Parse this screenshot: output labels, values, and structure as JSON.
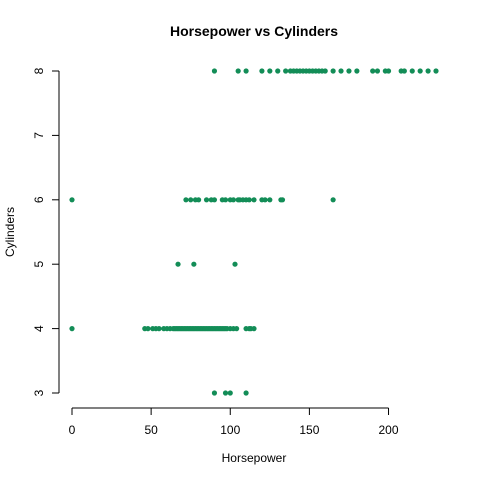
{
  "chart_data": {
    "type": "scatter",
    "title": "Horsepower vs Cylinders",
    "xlabel": "Horsepower",
    "ylabel": "Cylinders",
    "xlim": [
      0,
      230
    ],
    "ylim": [
      3,
      8
    ],
    "x_ticks": [
      0,
      50,
      100,
      150,
      200
    ],
    "y_ticks": [
      3,
      4,
      5,
      6,
      7,
      8
    ],
    "grid": false,
    "legend": "none",
    "point_color": "#138D57",
    "series": [
      {
        "points": [
          [
            90,
            8
          ],
          [
            105,
            8
          ],
          [
            110,
            8
          ],
          [
            120,
            8
          ],
          [
            125,
            8
          ],
          [
            130,
            8
          ],
          [
            135,
            8
          ],
          [
            138,
            8
          ],
          [
            140,
            8
          ],
          [
            142,
            8
          ],
          [
            144,
            8
          ],
          [
            146,
            8
          ],
          [
            148,
            8
          ],
          [
            150,
            8
          ],
          [
            152,
            8
          ],
          [
            154,
            8
          ],
          [
            156,
            8
          ],
          [
            158,
            8
          ],
          [
            160,
            8
          ],
          [
            165,
            8
          ],
          [
            170,
            8
          ],
          [
            175,
            8
          ],
          [
            180,
            8
          ],
          [
            190,
            8
          ],
          [
            193,
            8
          ],
          [
            198,
            8
          ],
          [
            200,
            8
          ],
          [
            208,
            8
          ],
          [
            210,
            8
          ],
          [
            215,
            8
          ],
          [
            220,
            8
          ],
          [
            225,
            8
          ],
          [
            230,
            8
          ],
          [
            0,
            6
          ],
          [
            72,
            6
          ],
          [
            75,
            6
          ],
          [
            78,
            6
          ],
          [
            80,
            6
          ],
          [
            85,
            6
          ],
          [
            88,
            6
          ],
          [
            90,
            6
          ],
          [
            95,
            6
          ],
          [
            97,
            6
          ],
          [
            100,
            6
          ],
          [
            102,
            6
          ],
          [
            105,
            6
          ],
          [
            106,
            6
          ],
          [
            108,
            6
          ],
          [
            110,
            6
          ],
          [
            112,
            6
          ],
          [
            115,
            6
          ],
          [
            120,
            6
          ],
          [
            122,
            6
          ],
          [
            125,
            6
          ],
          [
            132,
            6
          ],
          [
            133,
            6
          ],
          [
            165,
            6
          ],
          [
            67,
            5
          ],
          [
            77,
            5
          ],
          [
            103,
            5
          ],
          [
            0,
            4
          ],
          [
            46,
            4
          ],
          [
            48,
            4
          ],
          [
            51,
            4
          ],
          [
            53,
            4
          ],
          [
            55,
            4
          ],
          [
            58,
            4
          ],
          [
            60,
            4
          ],
          [
            62,
            4
          ],
          [
            64,
            4
          ],
          [
            65,
            4
          ],
          [
            66,
            4
          ],
          [
            67,
            4
          ],
          [
            68,
            4
          ],
          [
            69,
            4
          ],
          [
            70,
            4
          ],
          [
            71,
            4
          ],
          [
            72,
            4
          ],
          [
            73,
            4
          ],
          [
            74,
            4
          ],
          [
            75,
            4
          ],
          [
            76,
            4
          ],
          [
            77,
            4
          ],
          [
            78,
            4
          ],
          [
            79,
            4
          ],
          [
            80,
            4
          ],
          [
            81,
            4
          ],
          [
            82,
            4
          ],
          [
            83,
            4
          ],
          [
            84,
            4
          ],
          [
            85,
            4
          ],
          [
            86,
            4
          ],
          [
            87,
            4
          ],
          [
            88,
            4
          ],
          [
            89,
            4
          ],
          [
            90,
            4
          ],
          [
            91,
            4
          ],
          [
            92,
            4
          ],
          [
            93,
            4
          ],
          [
            94,
            4
          ],
          [
            95,
            4
          ],
          [
            96,
            4
          ],
          [
            97,
            4
          ],
          [
            98,
            4
          ],
          [
            100,
            4
          ],
          [
            102,
            4
          ],
          [
            104,
            4
          ],
          [
            110,
            4
          ],
          [
            112,
            4
          ],
          [
            113,
            4
          ],
          [
            115,
            4
          ],
          [
            90,
            3
          ],
          [
            97,
            3
          ],
          [
            100,
            3
          ],
          [
            110,
            3
          ]
        ]
      }
    ]
  }
}
